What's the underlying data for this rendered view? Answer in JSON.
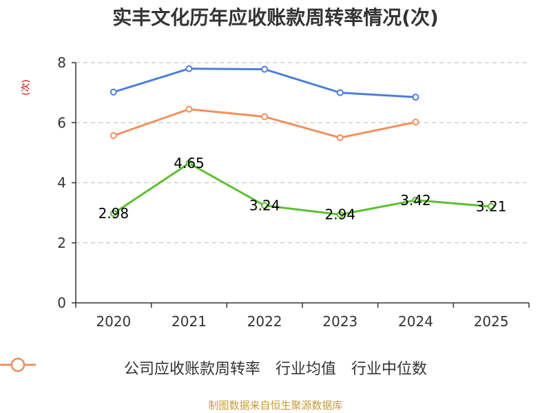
{
  "chart_data": {
    "type": "line",
    "title": "实丰文化历年应收账款周转率情况(次)",
    "ylabel": "(次)",
    "xlabel": "",
    "categories": [
      "2020",
      "2021",
      "2022",
      "2023",
      "2024",
      "2025"
    ],
    "ylim": [
      0,
      8
    ],
    "yticks": [
      "0",
      "2",
      "4",
      "6",
      "8"
    ],
    "grid": true,
    "legend_position": "bottom",
    "series": [
      {
        "name": "公司应收账款周转率",
        "color": "#5cc02f",
        "values": [
          2.98,
          4.65,
          3.24,
          2.94,
          3.42,
          3.21
        ],
        "labels": [
          "2.98",
          "4.65",
          "3.24",
          "2.94",
          "3.42",
          "3.21"
        ]
      },
      {
        "name": "行业均值",
        "color": "#4b7fdc",
        "values": [
          7.02,
          7.8,
          7.78,
          7.0,
          6.85,
          null
        ]
      },
      {
        "name": "行业中位数",
        "color": "#f58f5a",
        "values": [
          5.57,
          6.45,
          6.2,
          5.5,
          6.02,
          null
        ]
      }
    ]
  },
  "source": {
    "text": "制图数据来自恒生聚源数据库",
    "color": "#c89a3c"
  }
}
